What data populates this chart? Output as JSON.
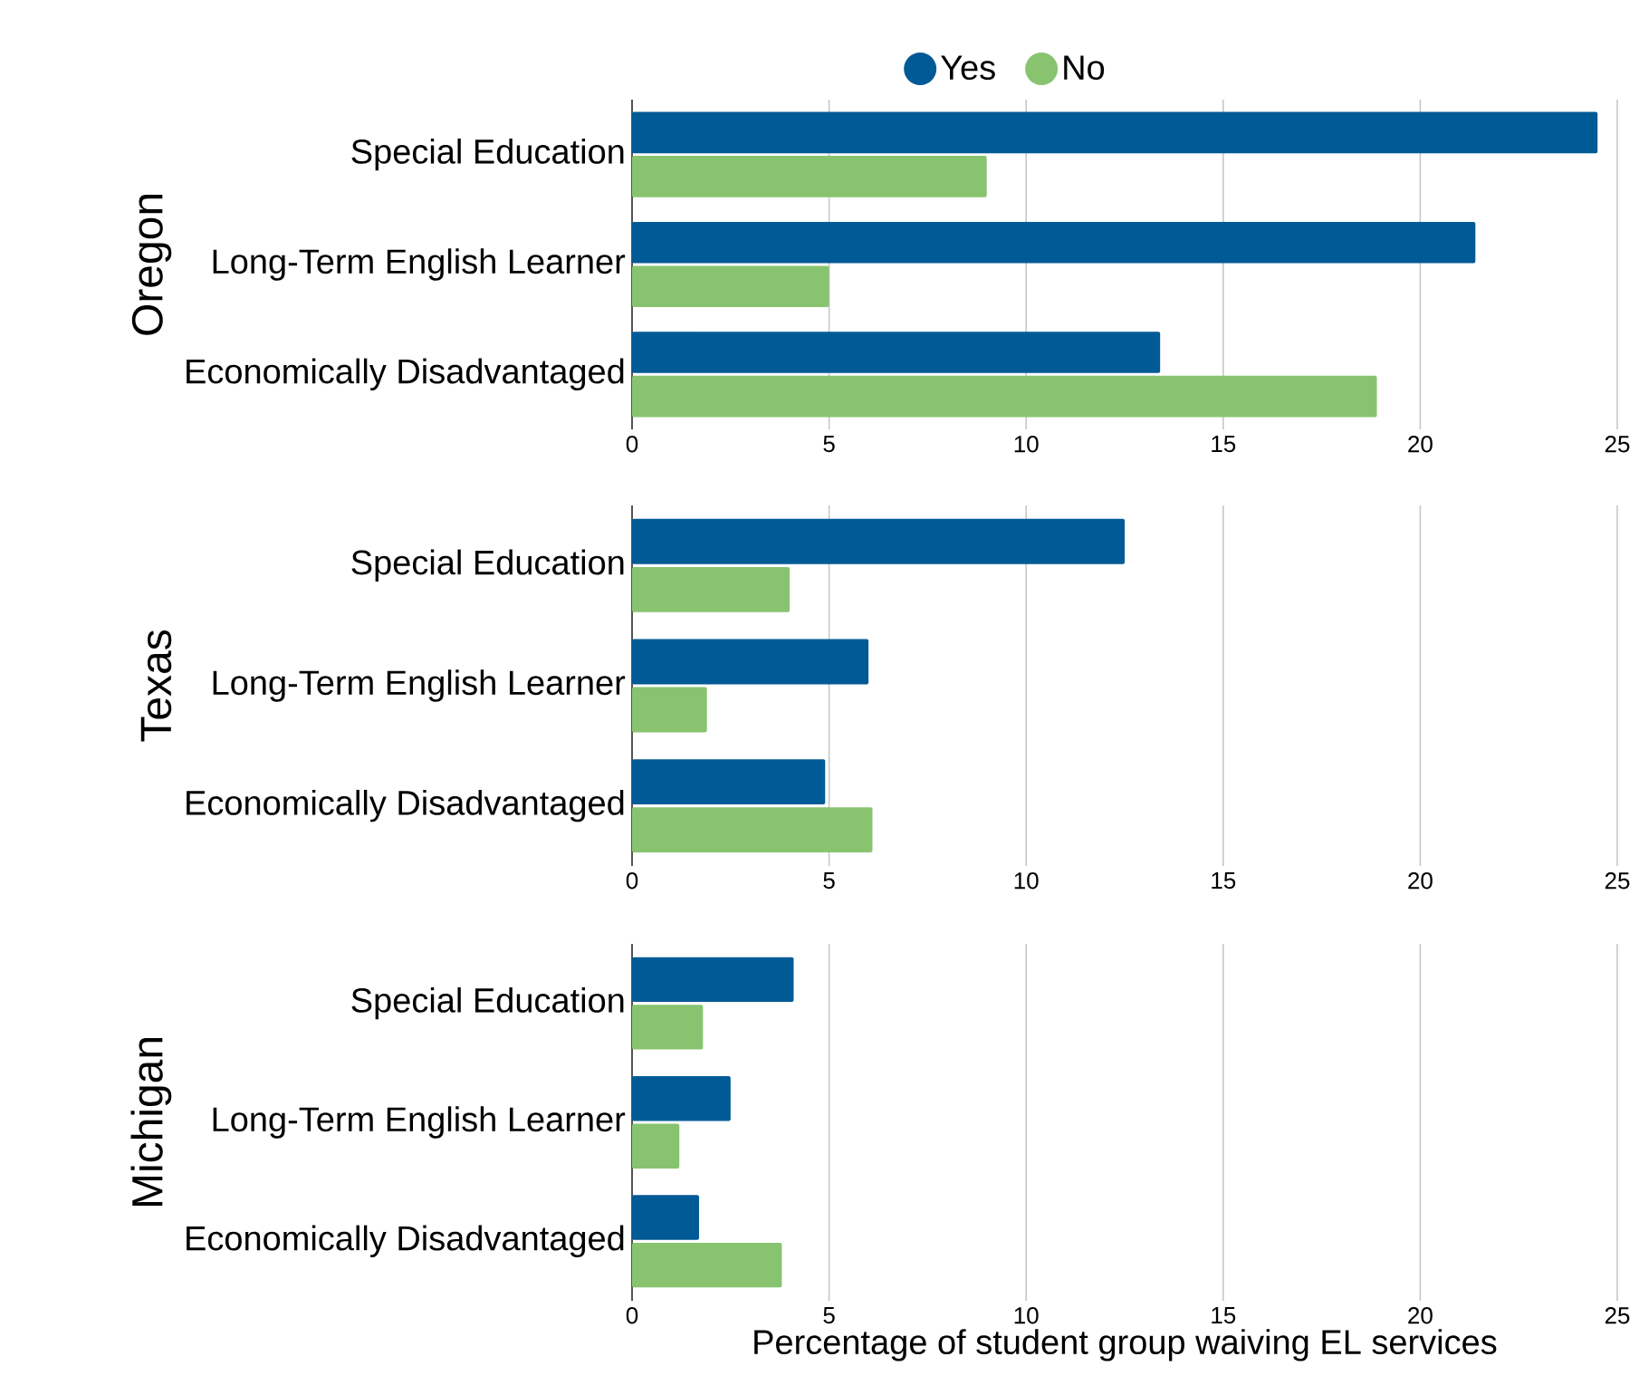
{
  "chart_data": [
    {
      "type": "bar",
      "orientation": "horizontal",
      "ylabel": "Oregon",
      "categories": [
        "Special Education",
        "Long-Term English Learner",
        "Economically Disadvantaged"
      ],
      "series": [
        {
          "name": "Yes",
          "color": "#005a96",
          "values": [
            24.5,
            21.4,
            13.4
          ]
        },
        {
          "name": "No",
          "color": "#88c470",
          "values": [
            9.0,
            5.0,
            18.9
          ]
        }
      ],
      "xlim": [
        0,
        25
      ],
      "xticks": [
        0,
        5,
        10,
        15,
        20,
        25
      ],
      "grid": "x",
      "legend": "top"
    },
    {
      "type": "bar",
      "orientation": "horizontal",
      "ylabel": "Texas",
      "categories": [
        "Special Education",
        "Long-Term English Learner",
        "Economically Disadvantaged"
      ],
      "series": [
        {
          "color": "#005a96",
          "values": [
            12.5,
            6.0,
            4.9
          ]
        },
        {
          "color": "#88c470",
          "values": [
            4.0,
            1.9,
            6.1
          ]
        }
      ],
      "xlim": [
        0,
        25
      ],
      "xticks": [
        0,
        5,
        10,
        15,
        20,
        25
      ],
      "grid": "x"
    },
    {
      "type": "bar",
      "orientation": "horizontal",
      "ylabel": "Michigan",
      "xlabel": "Percentage of student group waiving EL services",
      "categories": [
        "Special Education",
        "Long-Term English Learner",
        "Economically Disadvantaged"
      ],
      "series": [
        {
          "color": "#005a96",
          "values": [
            4.1,
            2.5,
            1.7
          ]
        },
        {
          "color": "#88c470",
          "values": [
            1.8,
            1.2,
            3.8
          ]
        }
      ],
      "xlim": [
        0,
        25
      ],
      "xticks": [
        0,
        5,
        10,
        15,
        20,
        25
      ],
      "grid": "x"
    }
  ]
}
